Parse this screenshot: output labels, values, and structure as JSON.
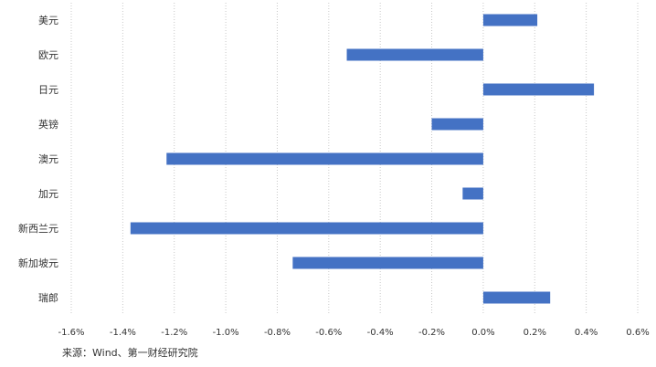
{
  "chart_data": {
    "type": "bar",
    "orientation": "horizontal",
    "categories": [
      "美元",
      "欧元",
      "日元",
      "英镑",
      "澳元",
      "加元",
      "新西兰元",
      "新加坡元",
      "瑞郎"
    ],
    "values": [
      0.21,
      -0.53,
      0.43,
      -0.2,
      -1.23,
      -0.08,
      -1.37,
      -0.74,
      0.26
    ],
    "value_unit": "%",
    "xlim": [
      -1.6,
      0.6
    ],
    "x_ticks": [
      "-1.6%",
      "-1.4%",
      "-1.2%",
      "-1.0%",
      "-0.8%",
      "-0.6%",
      "-0.4%",
      "-0.2%",
      "0.0%",
      "0.2%",
      "0.4%",
      "0.6%"
    ],
    "grid": true,
    "bar_color": "#4472C4",
    "title": "",
    "xlabel": "",
    "ylabel": ""
  },
  "source": "来源：Wind、第一财经研究院"
}
